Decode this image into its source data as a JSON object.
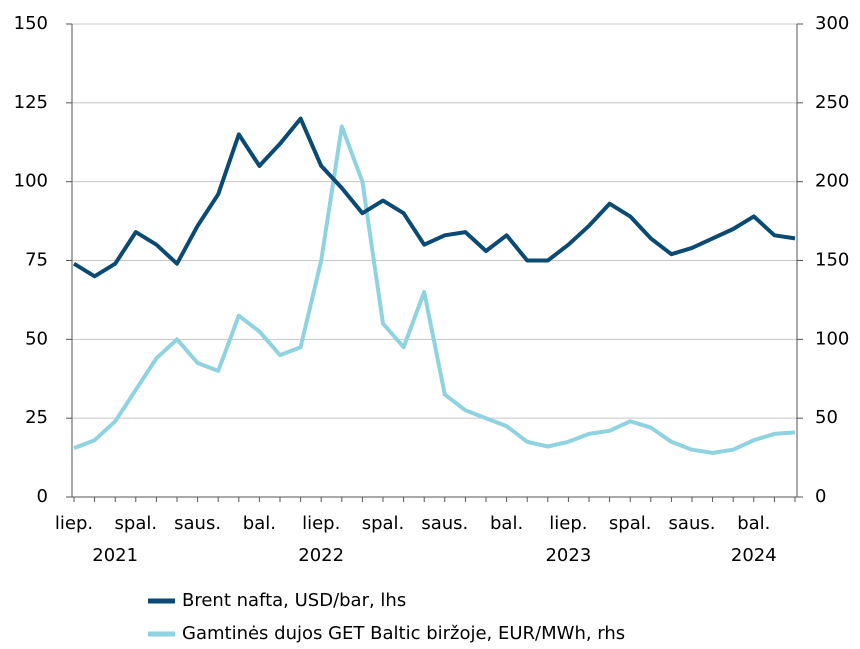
{
  "chart_data": {
    "type": "line",
    "categories": [
      "liep.",
      null,
      null,
      "spal.",
      null,
      null,
      "saus.",
      null,
      null,
      "bal.",
      null,
      null,
      "liep.",
      null,
      null,
      "spal.",
      null,
      null,
      "saus.",
      null,
      null,
      "bal.",
      null,
      null,
      "liep.",
      null,
      null,
      "spal.",
      null,
      null,
      "saus.",
      null,
      null,
      "bal.",
      null,
      null
    ],
    "categories2": [
      null,
      null,
      "2021",
      null,
      null,
      null,
      null,
      null,
      null,
      null,
      null,
      null,
      "2022",
      null,
      null,
      null,
      null,
      null,
      null,
      null,
      null,
      null,
      null,
      null,
      "2023",
      null,
      null,
      null,
      null,
      null,
      null,
      null,
      null,
      "2024",
      null,
      null
    ],
    "series": [
      {
        "name": "Brent nafta, USD/bar, lhs",
        "color": "#0b4a73",
        "axis": "y",
        "values": [
          74,
          70,
          74,
          84,
          80,
          74,
          86,
          96,
          115,
          105,
          112,
          120,
          105,
          98,
          90,
          94,
          90,
          80,
          83,
          84,
          78,
          83,
          75,
          75,
          80,
          86,
          93,
          89,
          82,
          77,
          79,
          82,
          85,
          89,
          83,
          82
        ]
      },
      {
        "name": "Gamtinės dujos GET Baltic biržoje, EUR/MWh, rhs",
        "color": "#8fd3e0",
        "axis": "y2",
        "values": [
          31,
          36,
          48,
          68,
          88,
          100,
          85,
          80,
          115,
          105,
          90,
          95,
          150,
          235,
          200,
          110,
          95,
          130,
          65,
          55,
          50,
          45,
          35,
          32,
          35,
          40,
          42,
          48,
          44,
          35,
          30,
          28,
          30,
          36,
          40,
          41
        ]
      }
    ],
    "ylim": [
      0,
      150
    ],
    "yticks": [
      0,
      25,
      50,
      75,
      100,
      125,
      150
    ],
    "y2lim": [
      0,
      300
    ],
    "y2ticks": [
      0,
      50,
      100,
      150,
      200,
      250,
      300
    ],
    "grid": true,
    "legend": "bottom"
  }
}
